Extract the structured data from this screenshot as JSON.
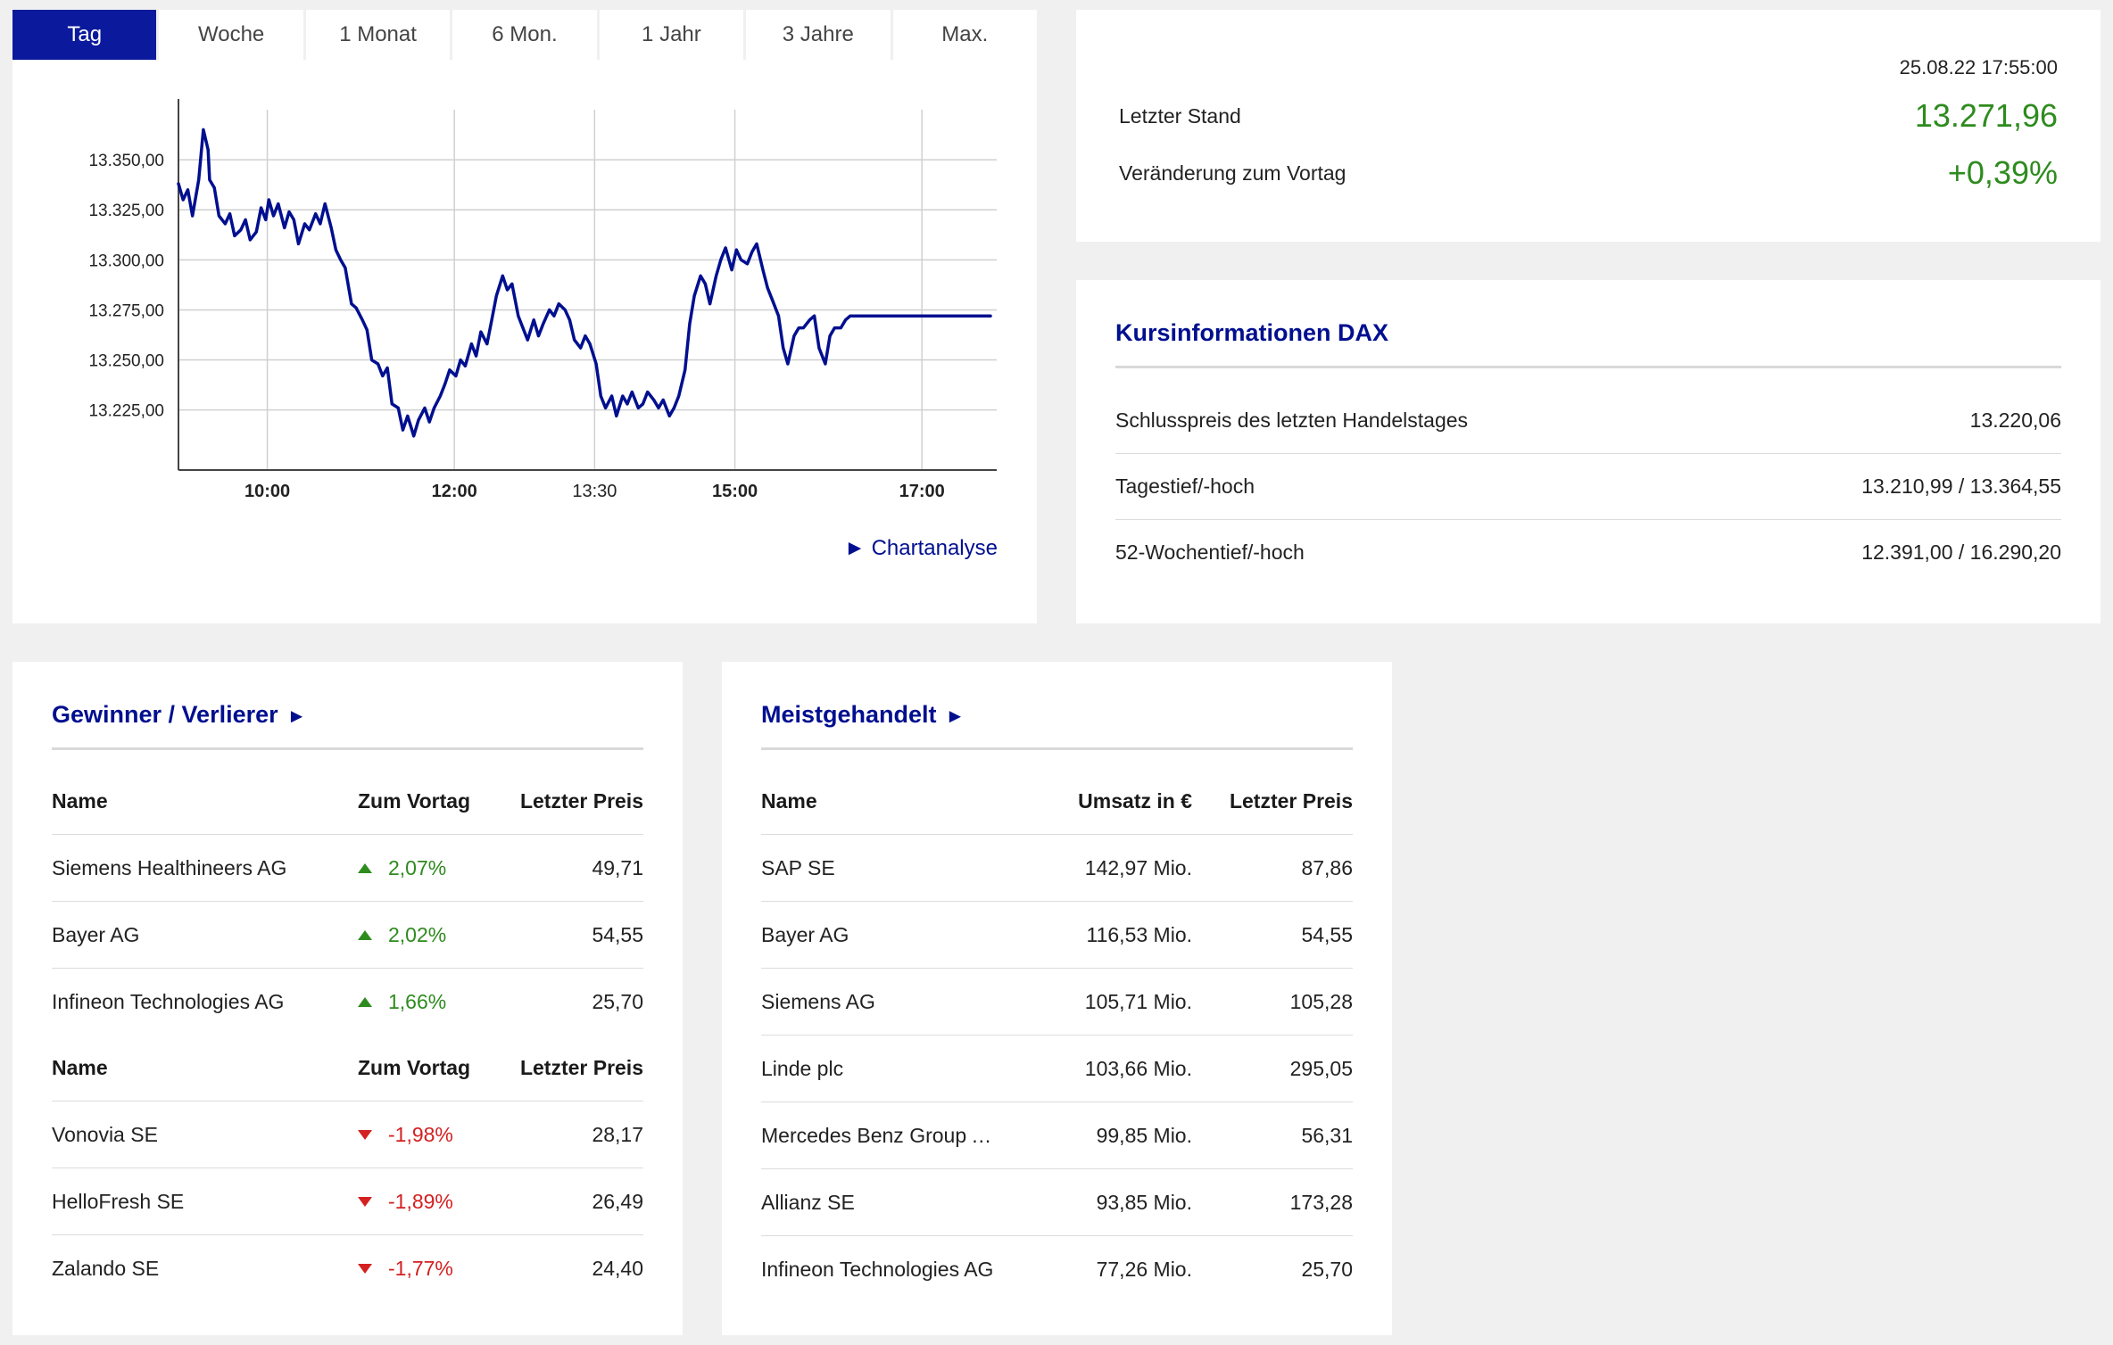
{
  "tabs": [
    "Tag",
    "Woche",
    "1 Monat",
    "6 Mon.",
    "1 Jahr",
    "3 Jahre",
    "Max."
  ],
  "active_tab": "Tag",
  "chart_link": "► Chartanalyse",
  "colors": {
    "line": "#000f8f",
    "up": "#2e8b1e",
    "down": "#d42020",
    "accent": "#0b1a9c"
  },
  "chart_data": {
    "type": "line",
    "title": "",
    "xlabel": "",
    "ylabel": "",
    "x_ticks": [
      "10:00",
      "12:00",
      "13:30",
      "15:00",
      "17:00"
    ],
    "x_ticks_bold": [
      true,
      true,
      false,
      true,
      true
    ],
    "x_tick_minutes": [
      600,
      720,
      810,
      900,
      1020
    ],
    "y_ticks": [
      "13.350,00",
      "13.325,00",
      "13.300,00",
      "13.275,00",
      "13.250,00",
      "13.225,00"
    ],
    "y_tick_values": [
      13350,
      13325,
      13300,
      13275,
      13250,
      13225
    ],
    "ylim": [
      13195,
      13375
    ],
    "xlim_minutes": [
      543,
      1068
    ],
    "grid": true,
    "series": [
      {
        "name": "",
        "x": [
          543,
          546,
          549,
          552,
          556,
          559,
          562,
          563,
          566,
          569,
          573,
          576,
          579,
          583,
          586,
          589,
          593,
          596,
          599,
          601,
          604,
          607,
          611,
          614,
          617,
          620,
          624,
          627,
          631,
          634,
          637,
          641,
          644,
          647,
          650,
          654,
          657,
          661,
          664,
          667,
          671,
          674,
          677,
          680,
          684,
          687,
          690,
          694,
          697,
          701,
          704,
          707,
          711,
          714,
          717,
          721,
          724,
          727,
          731,
          734,
          737,
          741,
          744,
          747,
          751,
          754,
          757,
          761,
          764,
          767,
          771,
          774,
          777,
          781,
          784,
          787,
          791,
          794,
          797,
          801,
          804,
          807,
          811,
          814,
          817,
          821,
          824,
          828,
          831,
          834,
          838,
          841,
          844,
          848,
          851,
          854,
          858,
          861,
          864,
          868,
          871,
          874,
          878,
          881,
          884,
          888,
          891,
          894,
          898,
          901,
          904,
          908,
          911,
          914,
          918,
          921,
          924,
          928,
          931,
          934,
          938,
          941,
          944,
          948,
          951,
          954,
          958,
          961,
          964,
          968,
          971,
          974,
          978,
          981,
          984,
          988,
          991,
          994,
          998,
          1001,
          1004,
          1008,
          1011,
          1014,
          1018,
          1021,
          1024,
          1028,
          1031,
          1034,
          1038,
          1041,
          1044,
          1048,
          1051,
          1054,
          1058,
          1061,
          1064
        ],
        "values": [
          13338,
          13330,
          13335,
          13322,
          13340,
          13365,
          13355,
          13340,
          13336,
          13322,
          13318,
          13323,
          13312,
          13315,
          13320,
          13310,
          13314,
          13326,
          13320,
          13330,
          13322,
          13328,
          13316,
          13324,
          13320,
          13308,
          13318,
          13315,
          13323,
          13318,
          13328,
          13316,
          13305,
          13300,
          13296,
          13278,
          13276,
          13270,
          13265,
          13250,
          13248,
          13242,
          13246,
          13228,
          13226,
          13215,
          13222,
          13212,
          13220,
          13226,
          13219,
          13226,
          13232,
          13238,
          13245,
          13242,
          13250,
          13247,
          13258,
          13252,
          13264,
          13258,
          13270,
          13282,
          13292,
          13285,
          13288,
          13272,
          13266,
          13260,
          13270,
          13262,
          13268,
          13275,
          13272,
          13278,
          13275,
          13270,
          13260,
          13256,
          13262,
          13258,
          13248,
          13232,
          13226,
          13232,
          13222,
          13232,
          13228,
          13234,
          13226,
          13228,
          13234,
          13230,
          13226,
          13230,
          13222,
          13226,
          13232,
          13245,
          13268,
          13282,
          13292,
          13288,
          13278,
          13292,
          13300,
          13306,
          13295,
          13305,
          13300,
          13298,
          13304,
          13308,
          13295,
          13286,
          13280,
          13272,
          13256,
          13248,
          13262,
          13266,
          13266,
          13270,
          13272,
          13256,
          13248,
          13262,
          13266,
          13266,
          13270,
          13272,
          13272,
          13272,
          13272,
          13272,
          13272,
          13272,
          13272,
          13272,
          13272,
          13272,
          13272,
          13272,
          13272,
          13272,
          13272,
          13272,
          13272,
          13272,
          13272,
          13272,
          13272,
          13272,
          13272,
          13272,
          13272,
          13272,
          13272
        ]
      }
    ]
  },
  "quote": {
    "timestamp": "25.08.22 17:55:00",
    "last_label": "Letzter Stand",
    "last_value": "13.271,96",
    "change_label": "Veränderung zum Vortag",
    "change_value": "+0,39%"
  },
  "kursinfo": {
    "title": "Kursinformationen DAX",
    "rows": [
      {
        "label": "Schlusspreis des letzten Handelstages",
        "value": "13.220,06"
      },
      {
        "label": "Tagestief/-hoch",
        "value": "13.210,99 / 13.364,55"
      },
      {
        "label": "52-Wochentief/-hoch",
        "value": "12.391,00 / 16.290,20"
      }
    ]
  },
  "gewinner": {
    "title": "Gewinner / Verlierer",
    "title_arrow": "►",
    "headers": {
      "name": "Name",
      "change": "Zum Vortag",
      "price": "Letzter Preis"
    },
    "winners": [
      {
        "name": "Siemens Healthineers AG",
        "change": "2,07%",
        "price": "49,71"
      },
      {
        "name": "Bayer AG",
        "change": "2,02%",
        "price": "54,55"
      },
      {
        "name": "Infineon Technologies AG",
        "change": "1,66%",
        "price": "25,70"
      }
    ],
    "losers": [
      {
        "name": "Vonovia SE",
        "change": "-1,98%",
        "price": "28,17"
      },
      {
        "name": "HelloFresh SE",
        "change": "-1,89%",
        "price": "26,49"
      },
      {
        "name": "Zalando SE",
        "change": "-1,77%",
        "price": "24,40"
      }
    ]
  },
  "meistgehandelt": {
    "title": "Meistgehandelt",
    "title_arrow": "►",
    "headers": {
      "name": "Name",
      "volume": "Umsatz in €",
      "price": "Letzter Preis"
    },
    "rows": [
      {
        "name": "SAP SE",
        "volume": "142,97 Mio.",
        "price": "87,86"
      },
      {
        "name": "Bayer AG",
        "volume": "116,53 Mio.",
        "price": "54,55"
      },
      {
        "name": "Siemens AG",
        "volume": "105,71 Mio.",
        "price": "105,28"
      },
      {
        "name": "Linde plc",
        "volume": "103,66 Mio.",
        "price": "295,05"
      },
      {
        "name": "Mercedes Benz Group AG…",
        "volume": "99,85 Mio.",
        "price": "56,31"
      },
      {
        "name": "Allianz SE",
        "volume": "93,85 Mio.",
        "price": "173,28"
      },
      {
        "name": "Infineon Technologies AG",
        "volume": "77,26 Mio.",
        "price": "25,70"
      }
    ]
  }
}
